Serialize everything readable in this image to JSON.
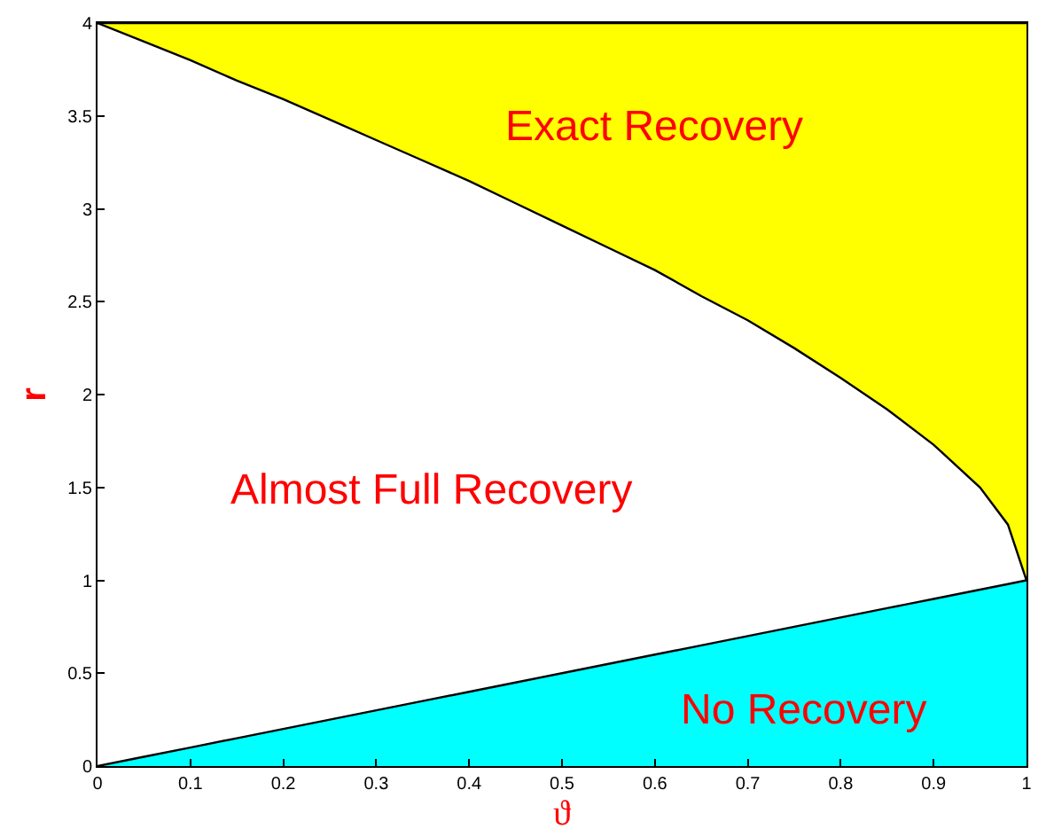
{
  "chart_data": {
    "type": "area",
    "stacked": true,
    "xlabel": "ϑ",
    "ylabel": "r",
    "x": [
      0,
      0.05,
      0.1,
      0.15,
      0.2,
      0.25,
      0.3,
      0.35,
      0.4,
      0.45,
      0.5,
      0.55,
      0.6,
      0.65,
      0.7,
      0.75,
      0.8,
      0.85,
      0.9,
      0.95,
      0.98,
      1
    ],
    "series": [
      {
        "color": "#00ffff",
        "values": [
          0,
          0.05,
          0.1,
          0.15,
          0.2,
          0.25,
          0.3,
          0.35,
          0.4,
          0.45,
          0.5,
          0.55,
          0.6,
          0.65,
          0.7,
          0.75,
          0.8,
          0.85,
          0.9,
          0.95,
          0.98,
          1
        ]
      },
      {
        "color": "#ffffff",
        "values": [
          4,
          3.85,
          3.7,
          3.54,
          3.39,
          3.23,
          3.07,
          2.91,
          2.75,
          2.58,
          2.41,
          2.24,
          2.07,
          1.88,
          1.7,
          1.5,
          1.29,
          1.07,
          0.83,
          0.55,
          0.32,
          0
        ]
      },
      {
        "color": "#ffff00",
        "values": [
          0,
          0.1,
          0.2,
          0.31,
          0.41,
          0.52,
          0.63,
          0.74,
          0.85,
          0.97,
          1.09,
          1.21,
          1.33,
          1.47,
          1.6,
          1.75,
          1.91,
          2.08,
          2.27,
          2.5,
          2.7,
          3
        ]
      }
    ],
    "annotations": [
      "Exact Recovery",
      "Almost Full Recovery",
      "No Recovery"
    ],
    "xlim": [
      0,
      1
    ],
    "ylim": [
      0,
      4
    ],
    "xticks": [
      0,
      0.1,
      0.2,
      0.3,
      0.4,
      0.5,
      0.6,
      0.7,
      0.8,
      0.9,
      1
    ],
    "yticks": [
      0,
      0.5,
      1,
      1.5,
      2,
      2.5,
      3,
      3.5,
      4
    ]
  }
}
